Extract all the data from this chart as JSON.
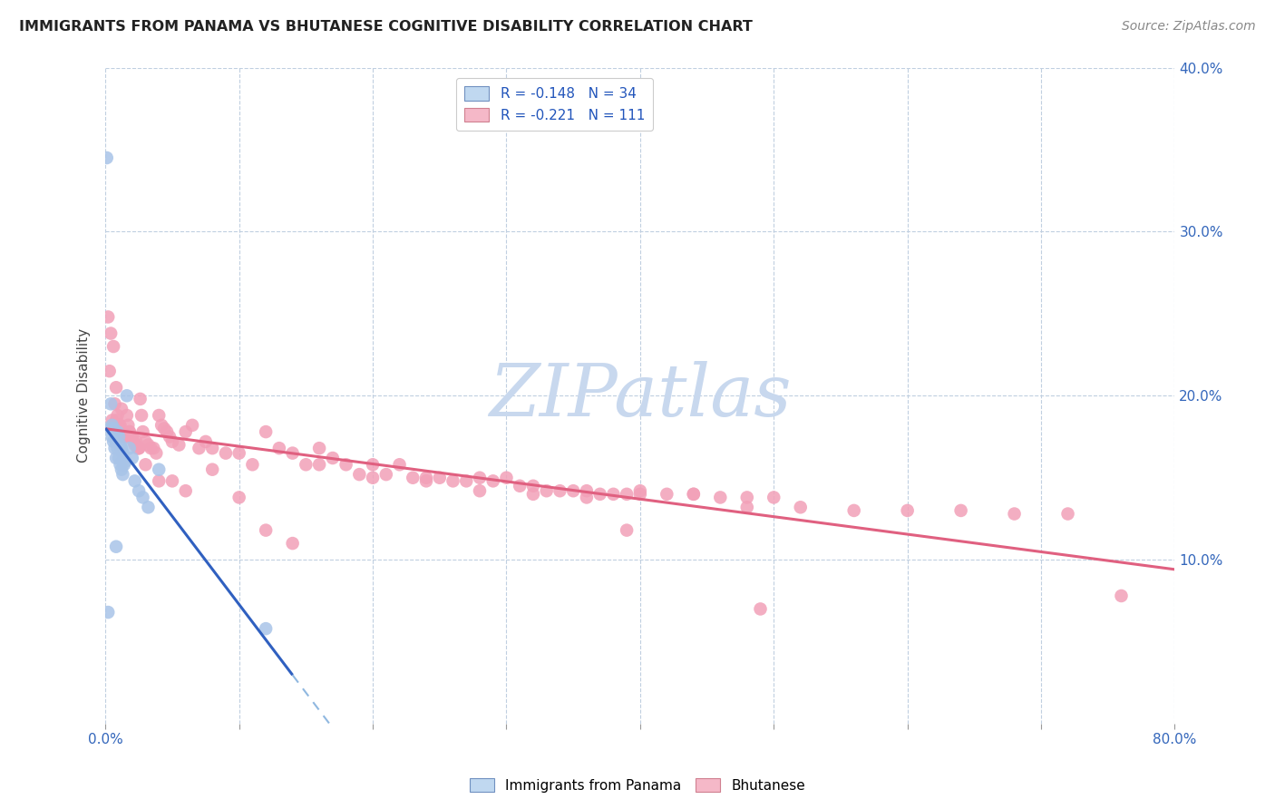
{
  "title": "IMMIGRANTS FROM PANAMA VS BHUTANESE COGNITIVE DISABILITY CORRELATION CHART",
  "source": "Source: ZipAtlas.com",
  "ylabel": "Cognitive Disability",
  "x_min": 0.0,
  "x_max": 0.8,
  "y_min": 0.0,
  "y_max": 0.4,
  "panama_R": -0.148,
  "panama_N": 34,
  "bhutan_R": -0.221,
  "bhutan_N": 111,
  "panama_color": "#a8c4e8",
  "bhutan_color": "#f2a0b8",
  "panama_line_color": "#3060c0",
  "bhutan_line_color": "#e06080",
  "dashed_line_color": "#90b8e0",
  "watermark": "ZIPatlas",
  "watermark_color": "#c8d8ee",
  "legend_blue_label": "Immigrants from Panama",
  "legend_pink_label": "Bhutanese",
  "panama_x": [
    0.001,
    0.004,
    0.004,
    0.005,
    0.005,
    0.006,
    0.006,
    0.007,
    0.007,
    0.008,
    0.008,
    0.009,
    0.009,
    0.01,
    0.01,
    0.011,
    0.011,
    0.012,
    0.012,
    0.013,
    0.013,
    0.014,
    0.015,
    0.016,
    0.018,
    0.02,
    0.022,
    0.025,
    0.028,
    0.032,
    0.04,
    0.002,
    0.008,
    0.12
  ],
  "panama_y": [
    0.345,
    0.195,
    0.18,
    0.182,
    0.175,
    0.18,
    0.172,
    0.178,
    0.168,
    0.172,
    0.162,
    0.178,
    0.168,
    0.175,
    0.162,
    0.17,
    0.158,
    0.168,
    0.155,
    0.165,
    0.152,
    0.158,
    0.16,
    0.2,
    0.168,
    0.162,
    0.148,
    0.142,
    0.138,
    0.132,
    0.155,
    0.068,
    0.108,
    0.058
  ],
  "bhutan_x": [
    0.002,
    0.004,
    0.005,
    0.006,
    0.007,
    0.008,
    0.009,
    0.01,
    0.011,
    0.012,
    0.013,
    0.014,
    0.015,
    0.016,
    0.017,
    0.018,
    0.019,
    0.02,
    0.021,
    0.022,
    0.023,
    0.024,
    0.025,
    0.026,
    0.027,
    0.028,
    0.03,
    0.032,
    0.034,
    0.036,
    0.038,
    0.04,
    0.042,
    0.044,
    0.046,
    0.048,
    0.05,
    0.055,
    0.06,
    0.065,
    0.07,
    0.075,
    0.08,
    0.09,
    0.1,
    0.11,
    0.12,
    0.13,
    0.14,
    0.15,
    0.16,
    0.17,
    0.18,
    0.19,
    0.2,
    0.21,
    0.22,
    0.23,
    0.24,
    0.25,
    0.26,
    0.27,
    0.28,
    0.29,
    0.3,
    0.31,
    0.32,
    0.33,
    0.34,
    0.35,
    0.36,
    0.37,
    0.38,
    0.39,
    0.4,
    0.42,
    0.44,
    0.46,
    0.48,
    0.5,
    0.003,
    0.008,
    0.012,
    0.018,
    0.025,
    0.03,
    0.04,
    0.05,
    0.06,
    0.08,
    0.1,
    0.12,
    0.14,
    0.16,
    0.2,
    0.24,
    0.28,
    0.32,
    0.36,
    0.4,
    0.44,
    0.48,
    0.52,
    0.56,
    0.6,
    0.64,
    0.68,
    0.72,
    0.76,
    0.49,
    0.39
  ],
  "bhutan_y": [
    0.248,
    0.238,
    0.185,
    0.23,
    0.195,
    0.185,
    0.188,
    0.182,
    0.182,
    0.178,
    0.178,
    0.175,
    0.175,
    0.188,
    0.182,
    0.178,
    0.175,
    0.175,
    0.172,
    0.17,
    0.172,
    0.168,
    0.168,
    0.198,
    0.188,
    0.178,
    0.172,
    0.17,
    0.168,
    0.168,
    0.165,
    0.188,
    0.182,
    0.18,
    0.178,
    0.175,
    0.172,
    0.17,
    0.178,
    0.182,
    0.168,
    0.172,
    0.168,
    0.165,
    0.165,
    0.158,
    0.178,
    0.168,
    0.165,
    0.158,
    0.168,
    0.162,
    0.158,
    0.152,
    0.158,
    0.152,
    0.158,
    0.15,
    0.15,
    0.15,
    0.148,
    0.148,
    0.15,
    0.148,
    0.15,
    0.145,
    0.145,
    0.142,
    0.142,
    0.142,
    0.142,
    0.14,
    0.14,
    0.14,
    0.14,
    0.14,
    0.14,
    0.138,
    0.138,
    0.138,
    0.215,
    0.205,
    0.192,
    0.178,
    0.168,
    0.158,
    0.148,
    0.148,
    0.142,
    0.155,
    0.138,
    0.118,
    0.11,
    0.158,
    0.15,
    0.148,
    0.142,
    0.14,
    0.138,
    0.142,
    0.14,
    0.132,
    0.132,
    0.13,
    0.13,
    0.13,
    0.128,
    0.128,
    0.078,
    0.07,
    0.118
  ],
  "panama_line_x_start": 0.0,
  "panama_line_x_solid_end": 0.14,
  "panama_line_x_dash_end": 0.8,
  "bhutan_line_x_start": 0.0,
  "bhutan_line_x_end": 0.8
}
